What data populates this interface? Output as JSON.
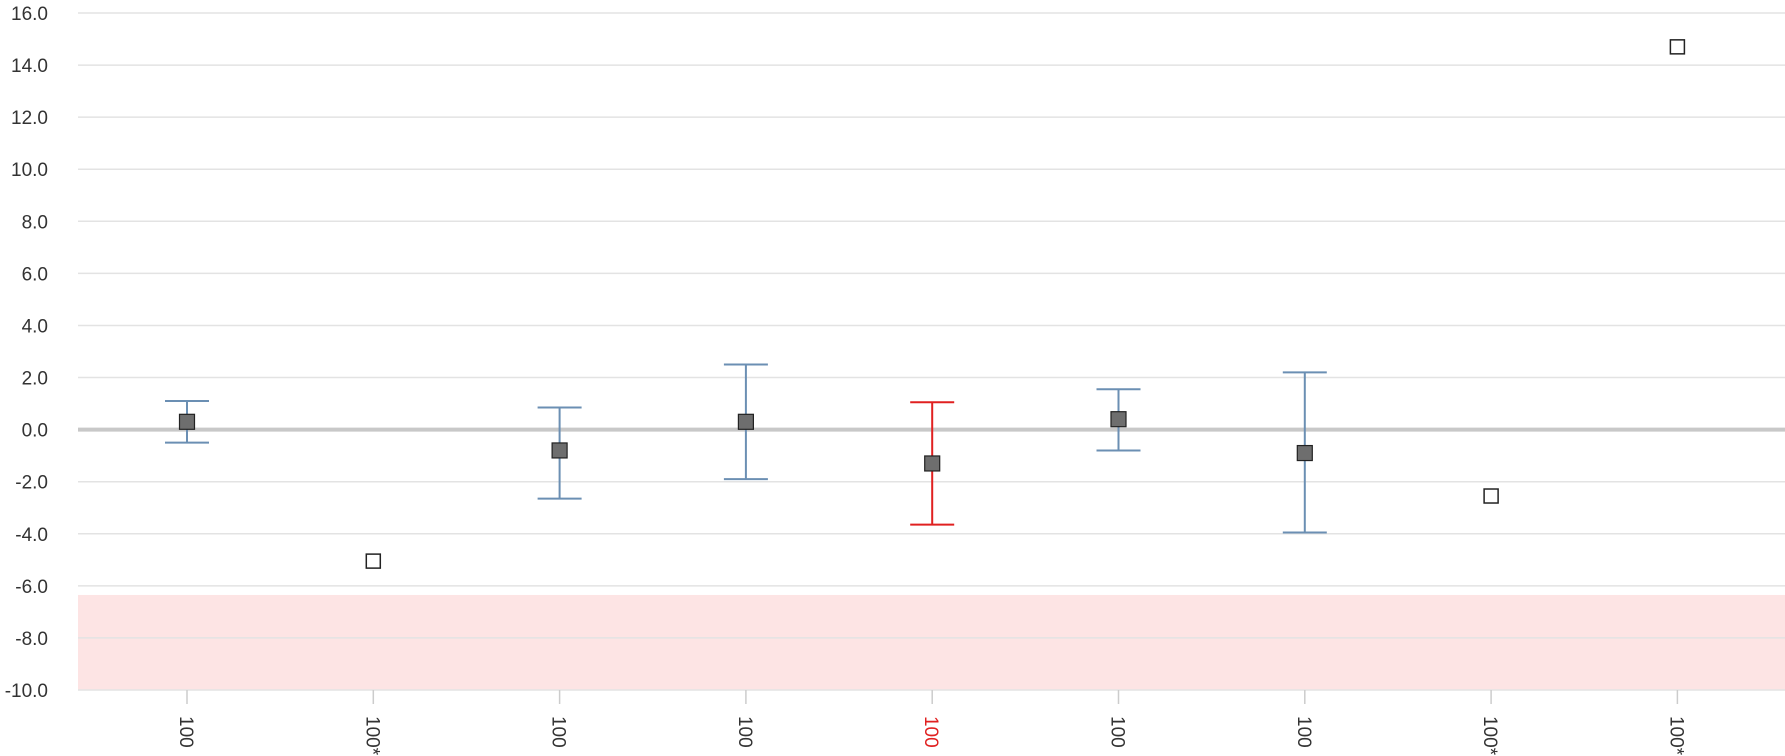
{
  "chart_data": {
    "type": "scatter",
    "y_axis": {
      "min": -10,
      "max": 16,
      "tick_step": 2,
      "tick_labels": [
        "-10.0",
        "-8.0",
        "-6.0",
        "-4.0",
        "-2.0",
        "0.0",
        "2.0",
        "4.0",
        "6.0",
        "8.0",
        "10.0",
        "12.0",
        "14.0",
        "16.0"
      ]
    },
    "grid": true,
    "zero_line": true,
    "shaded_band": {
      "from": -10,
      "to": -6.35,
      "color": "#fde4e4"
    },
    "colors": {
      "errorbar_normal": "#6b8fb3",
      "errorbar_highlight": "#e02020",
      "marker_filled": "#6e6e6e",
      "marker_open": "#ffffff",
      "label_normal": "#333333",
      "label_highlight": "#e02020",
      "grid": "#e3e3e3",
      "zero_line": "#c8c8c8"
    },
    "points": [
      {
        "label": "100",
        "value": 0.3,
        "low": -0.5,
        "high": 1.1,
        "marker": "filled",
        "highlight": false
      },
      {
        "label": "100*",
        "value": -5.05,
        "low": null,
        "high": null,
        "marker": "open",
        "highlight": false
      },
      {
        "label": "100",
        "value": -0.8,
        "low": -2.65,
        "high": 0.85,
        "marker": "filled",
        "highlight": false
      },
      {
        "label": "100",
        "value": 0.3,
        "low": -1.9,
        "high": 2.5,
        "marker": "filled",
        "highlight": false
      },
      {
        "label": "100",
        "value": -1.3,
        "low": -3.65,
        "high": 1.05,
        "marker": "filled",
        "highlight": true
      },
      {
        "label": "100",
        "value": 0.4,
        "low": -0.8,
        "high": 1.55,
        "marker": "filled",
        "highlight": false
      },
      {
        "label": "100",
        "value": -0.9,
        "low": -3.95,
        "high": 2.2,
        "marker": "filled",
        "highlight": false
      },
      {
        "label": "100*",
        "value": -2.55,
        "low": null,
        "high": null,
        "marker": "open",
        "highlight": false
      },
      {
        "label": "100*",
        "value": 14.7,
        "low": null,
        "high": null,
        "marker": "open",
        "highlight": false
      }
    ]
  }
}
